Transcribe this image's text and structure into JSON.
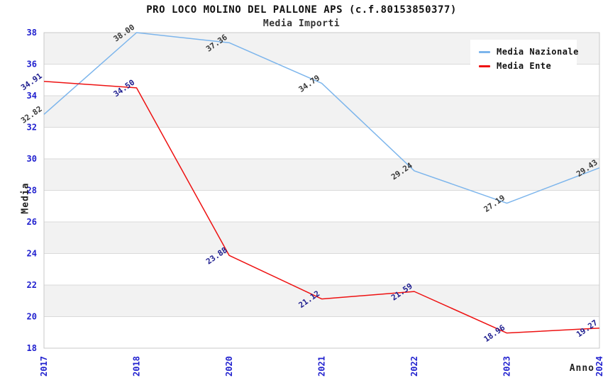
{
  "header": {
    "title": "PRO LOCO MOLINO DEL PALLONE APS (c.f.80153850377)",
    "subtitle": "Media Importi"
  },
  "chart_data": {
    "type": "line",
    "title": "PRO LOCO MOLINO DEL PALLONE APS (c.f.80153850377)",
    "subtitle": "Media Importi",
    "xlabel": "Anno",
    "ylabel": "Media",
    "categories": [
      "2017",
      "2018",
      "2020",
      "2021",
      "2022",
      "2023",
      "2024"
    ],
    "series": [
      {
        "name": "Media Nazionale",
        "color": "#7cb5ec",
        "label_color": "#3a3a3a",
        "values": [
          32.82,
          38.0,
          37.36,
          34.79,
          29.24,
          27.19,
          29.43
        ]
      },
      {
        "name": "Media Ente",
        "color": "#ee1111",
        "label_color": "#1d1d8f",
        "values": [
          34.91,
          34.5,
          23.88,
          21.12,
          21.59,
          18.96,
          19.27
        ]
      }
    ],
    "ylim": [
      18,
      38
    ],
    "ytick_step": 2,
    "value_decimals": 2,
    "grid": true,
    "legend_position": "top-right",
    "tick_color": "#2121cf",
    "band_colors": [
      "#f2f2f2",
      "#ffffff"
    ],
    "gridline_color": "#dadada",
    "border_color": "#c9c9c9"
  }
}
